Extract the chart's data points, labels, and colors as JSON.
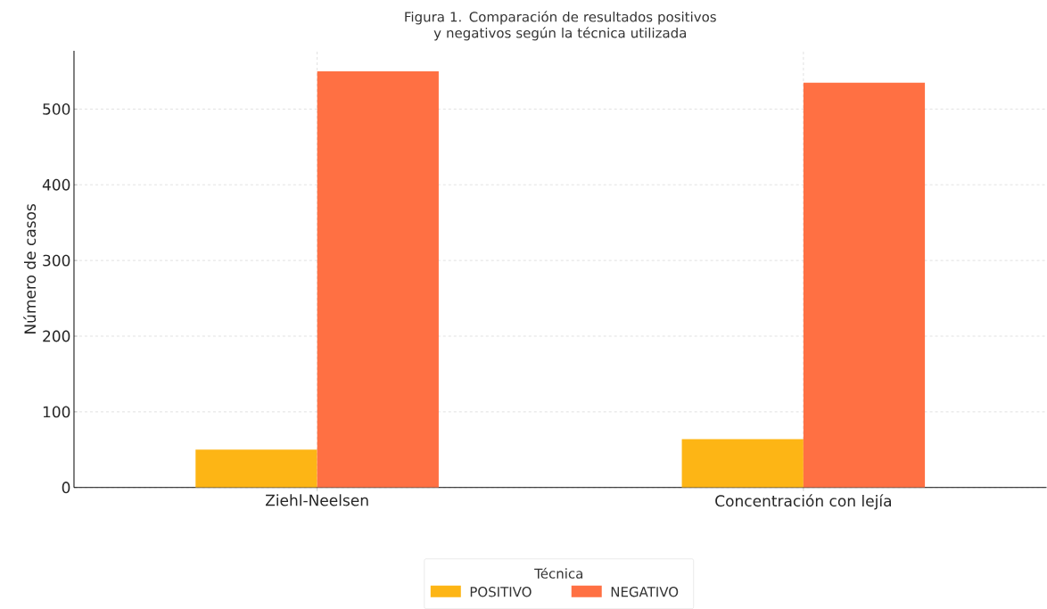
{
  "chart_data": {
    "type": "bar",
    "title": "Figura 1. Comparación de resultados positivos y negativos según la técnica utilizada",
    "ylabel": "Número de casos",
    "legend_title": "Técnica",
    "categories": [
      "Ziehl-Neelsen",
      "Concentración con lejía"
    ],
    "series": [
      {
        "name": "POSITIVO",
        "color": "#fdb515",
        "values": [
          50,
          64
        ]
      },
      {
        "name": "NEGATIVO",
        "color": "#ff7043",
        "values": [
          550,
          535
        ]
      }
    ],
    "ylim": [
      0,
      577
    ],
    "yticks": [
      0,
      100,
      200,
      300,
      400,
      500
    ],
    "grid": true,
    "legend": "bottom"
  }
}
